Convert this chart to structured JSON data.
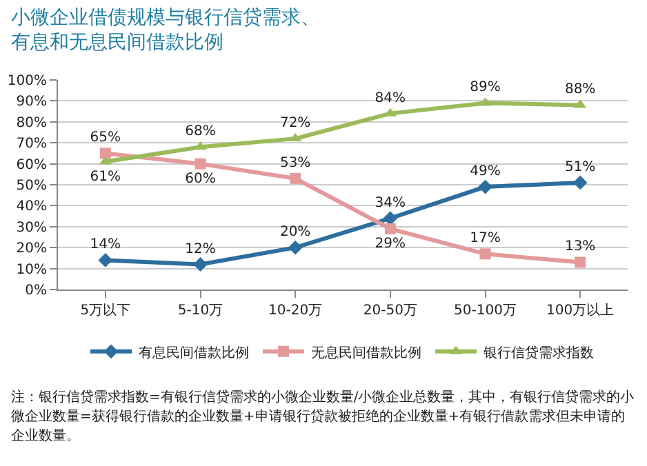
{
  "chart_data": {
    "type": "line",
    "title": "小微企业借债规模与银行信贷需求、有息和无息民间借款比例",
    "categories": [
      "5万以下",
      "5-10万",
      "10-20万",
      "20-50万",
      "50-100万",
      "100万以上"
    ],
    "series": [
      {
        "name": "有息民间借款比例",
        "color": "#2e6e9e",
        "marker": "diamond",
        "values": [
          14,
          12,
          20,
          34,
          49,
          51
        ],
        "value_labels": [
          "14%",
          "12%",
          "20%",
          "34%",
          "49%",
          "51%"
        ]
      },
      {
        "name": "无息民间借款比例",
        "color": "#e49a9a",
        "marker": "square",
        "values": [
          65,
          60,
          53,
          29,
          17,
          13
        ],
        "value_labels": [
          "65%",
          "60%",
          "53%",
          "29%",
          "17%",
          "13%"
        ]
      },
      {
        "name": "银行信贷需求指数",
        "color": "#9bbb59",
        "marker": "triangle",
        "values": [
          61,
          68,
          72,
          84,
          89,
          88
        ],
        "value_labels": [
          "61%",
          "68%",
          "72%",
          "84%",
          "89%",
          "88%"
        ]
      }
    ],
    "ylim": [
      0,
      100
    ],
    "yticks": [
      {
        "value": 0,
        "label": "0%"
      },
      {
        "value": 10,
        "label": "10%"
      },
      {
        "value": 20,
        "label": "20%"
      },
      {
        "value": 30,
        "label": "30%"
      },
      {
        "value": 40,
        "label": "40%"
      },
      {
        "value": 50,
        "label": "50%"
      },
      {
        "value": 60,
        "label": "60%"
      },
      {
        "value": 70,
        "label": "70%"
      },
      {
        "value": 80,
        "label": "80%"
      },
      {
        "value": 90,
        "label": "90%"
      },
      {
        "value": 100,
        "label": "100%"
      }
    ],
    "grid": "y",
    "legend": "bottom",
    "line_style": "solid",
    "annotations": [
      "注：银行信贷需求指数=有银行信贷需求的小微企业数量/小微企业总数量，其中，有银行信贷需求的小微企业数量=获得银行借款的企业数量+申请银行贷款被拒绝的企业数量+有银行借款需求但未申请的企业数量。"
    ]
  }
}
